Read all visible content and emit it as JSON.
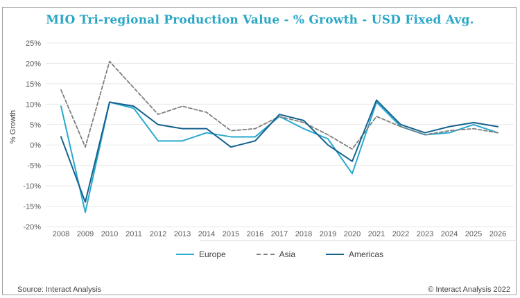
{
  "title": "MIO Tri-regional Production Value - % Growth - USD Fixed Avg.",
  "ylabel": "% Growth",
  "footer": {
    "source": "Source: Interact Analysis",
    "copyright": "© Interact Analysis 2022"
  },
  "colors": {
    "title": "#2ba7c6",
    "axis_text": "#595959",
    "gridline": "#e8e8e8",
    "frame_border": "#9e9e9e",
    "europe": "#28a9cf",
    "asia": "#7f7f7f",
    "americas": "#15618d"
  },
  "chart_data": {
    "type": "line",
    "title": "MIO Tri-regional Production Value - % Growth - USD Fixed Avg.",
    "xlabel": "",
    "ylabel": "% Growth",
    "ylim": [
      -20,
      25
    ],
    "grid": true,
    "legend_position": "bottom",
    "ytick_values": [
      25,
      20,
      15,
      10,
      5,
      0,
      -5,
      -10,
      -15,
      -20
    ],
    "ytick_labels": [
      "25%",
      "20%",
      "15%",
      "10%",
      "5%",
      "0%",
      "-5%",
      "-10%",
      "-15%",
      "-20%"
    ],
    "categories": [
      "2008",
      "2009",
      "2010",
      "2011",
      "2012",
      "2013",
      "2014",
      "2015",
      "2016",
      "2017",
      "2018",
      "2019",
      "2020",
      "2021",
      "2022",
      "2023",
      "2024",
      "2025",
      "2026"
    ],
    "series": [
      {
        "name": "Europe",
        "color": "#28a9cf",
        "dash": false,
        "values": [
          9.5,
          -16.5,
          10.5,
          9,
          1,
          1,
          3,
          2,
          2,
          7,
          4,
          1.5,
          -7,
          10.5,
          4.5,
          2.5,
          3,
          5,
          3
        ]
      },
      {
        "name": "Asia",
        "color": "#7f7f7f",
        "dash": true,
        "values": [
          13.5,
          -0.5,
          20.5,
          14,
          7.5,
          9.5,
          8,
          3.5,
          4,
          7,
          5.5,
          2.5,
          -1,
          7,
          4.5,
          2.5,
          3.5,
          4,
          3
        ]
      },
      {
        "name": "Americas",
        "color": "#15618d",
        "dash": false,
        "values": [
          2,
          -14,
          10.5,
          9.5,
          5,
          4,
          4,
          -0.5,
          1,
          7.5,
          6,
          0,
          -4,
          11,
          5,
          3,
          4.5,
          5.5,
          4.5
        ]
      }
    ]
  }
}
